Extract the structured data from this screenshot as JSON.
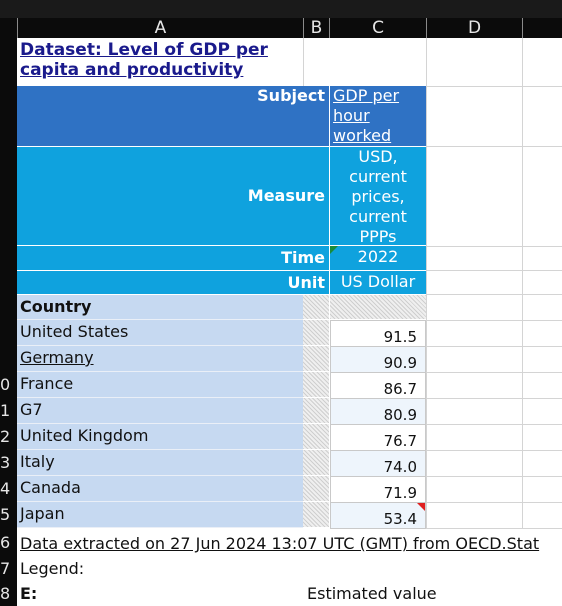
{
  "columns": [
    "A",
    "B",
    "C",
    "D"
  ],
  "row_numbers": [
    "",
    "",
    "",
    "",
    "",
    "",
    "",
    "",
    "",
    "0",
    "1",
    "2",
    "3",
    "4",
    "5",
    "6",
    "7",
    "8"
  ],
  "title": "Dataset: Level of GDP per capita and productivity",
  "header": {
    "subject_label": "Subject",
    "subject_value": "GDP per hour worked",
    "measure_label": "Measure",
    "measure_value": "USD, current prices, current PPPs",
    "time_label": "Time",
    "time_value": "2022",
    "unit_label": "Unit",
    "unit_value": "US Dollar"
  },
  "country_label": "Country",
  "rows": [
    {
      "country": "United States",
      "value": "91.5"
    },
    {
      "country": "Germany",
      "value": "90.9"
    },
    {
      "country": "France",
      "value": "86.7"
    },
    {
      "country": "G7",
      "value": "80.9"
    },
    {
      "country": "United Kingdom",
      "value": "76.7"
    },
    {
      "country": "Italy",
      "value": "74.0"
    },
    {
      "country": "Canada",
      "value": "71.9"
    },
    {
      "country": "Japan",
      "value": "53.4"
    }
  ],
  "footer": {
    "extraction_note": "Data extracted on 27 Jun 2024 13:07 UTC (GMT) from OECD.Stat",
    "legend_label": "Legend:",
    "legend_key": "E:",
    "legend_value": "Estimated value"
  },
  "colors": {
    "header_dark": "#2f72c4",
    "header_light": "#0fa2de",
    "country_fill": "#c6d9f1",
    "title_link": "#1a1a8c",
    "flag_red": "#e02020",
    "flag_green": "#1a8c3a"
  }
}
